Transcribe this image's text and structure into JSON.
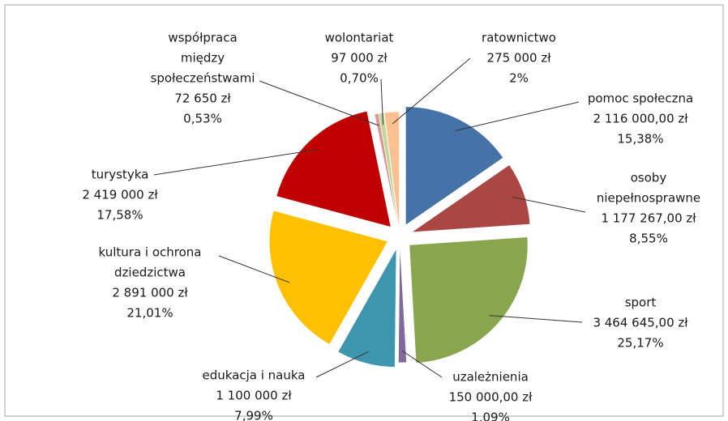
{
  "chart_data": {
    "type": "pie",
    "categories": [
      [
        "pomoc społeczna"
      ],
      [
        "osoby",
        "niepełnosprawne"
      ],
      [
        "sport"
      ],
      [
        "uzależnienia"
      ],
      [
        "edukacja i nauka"
      ],
      [
        "kultura i ochrona",
        "dziedzictwa"
      ],
      [
        "turystyka"
      ],
      [
        "współpraca",
        "między",
        "społeczeństwami"
      ],
      [
        "wolontariat"
      ],
      [
        "ratownictwo"
      ]
    ],
    "amounts": [
      "2 116 000,00 zł",
      "1 177 267,00 zł",
      "3 464 645,00 zł",
      "150 000,00 zł",
      "1 100 000 zł",
      "2 891 000 zł",
      "2 419 000 zł",
      "72 650 zł",
      "97 000 zł",
      "275 000 zł"
    ],
    "values": [
      15.38,
      8.55,
      25.17,
      1.09,
      7.99,
      21.01,
      17.58,
      0.53,
      0.7,
      2
    ],
    "value_labels": [
      "15,38%",
      "8,55%",
      "25,17%",
      "1,09%",
      "7,99%",
      "21,01%",
      "17,58%",
      "0,53%",
      "0,70%",
      "2%"
    ],
    "colors": [
      "#4572a7",
      "#aa4643",
      "#89a54e",
      "#80699b",
      "#3d96ae",
      "#ffc000",
      "#c00000",
      "#d99694",
      "#c3d69b",
      "#fac090"
    ]
  }
}
